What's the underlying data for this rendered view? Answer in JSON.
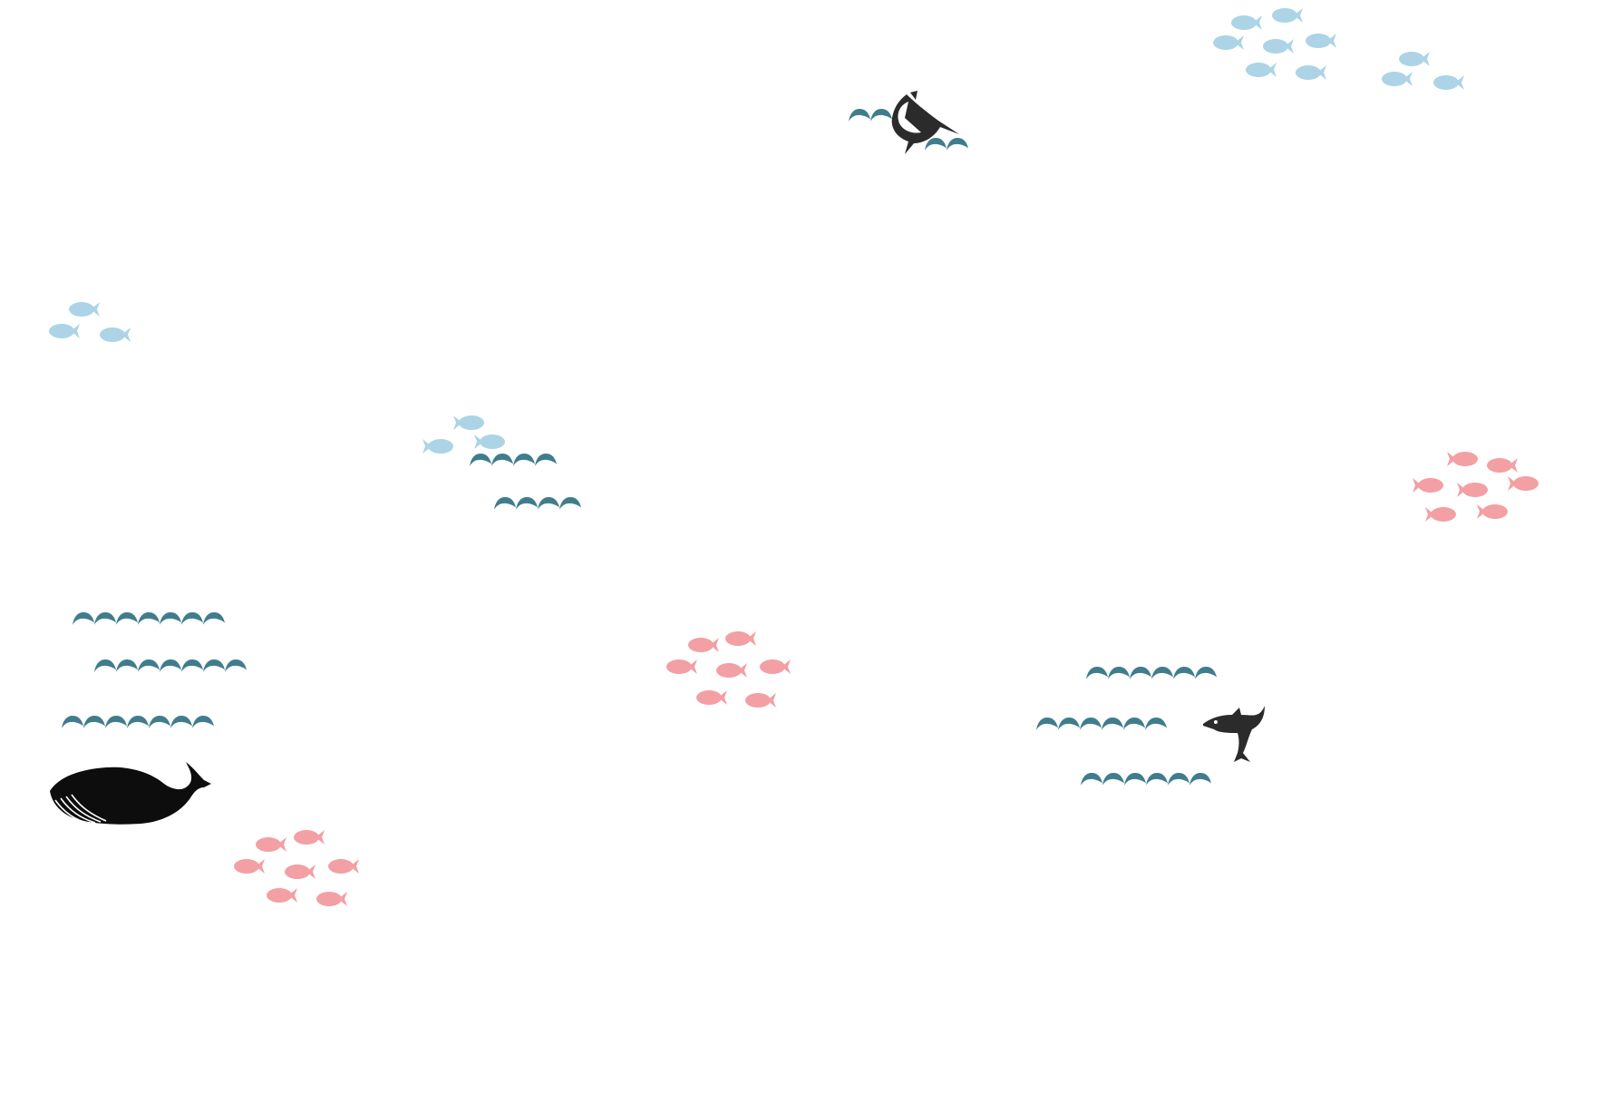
{
  "palette": {
    "background": "#ffffff",
    "wave": "#3f7d8d",
    "fish_blue": "#acd4e6",
    "fish_pink": "#f2a0a4",
    "animal_dark": "#2b2b2b",
    "whale": "#0d0d0d"
  },
  "icons": {
    "wave": "wave-icon",
    "fish": "fish-icon",
    "marlin": "marlin-icon",
    "dolphin": "dolphin-icon",
    "whale": "whale-icon"
  }
}
